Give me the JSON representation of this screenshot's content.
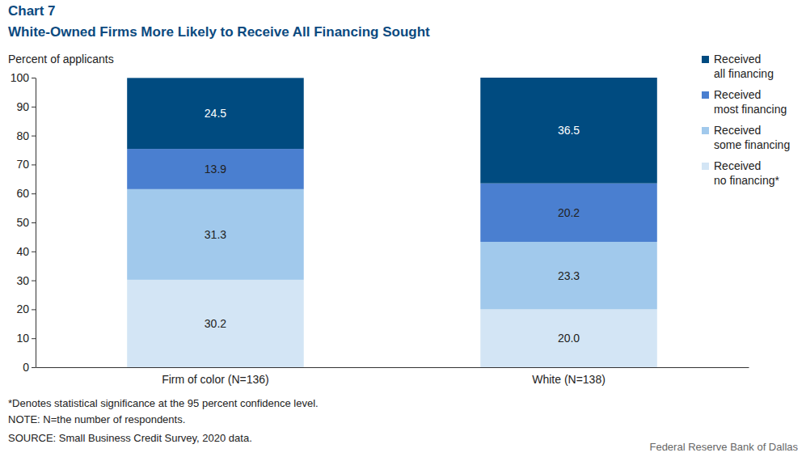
{
  "chart_data": {
    "type": "bar",
    "stacked": true,
    "data_labels": true,
    "grid": false,
    "legend": "right",
    "chart_number": "Chart 7",
    "title": "White-Owned Firms More Likely to Receive All Financing Sought",
    "y_label": "Percent of applicants",
    "categories": [
      "Firm of color (N=136)",
      "White (N=138)"
    ],
    "series": [
      {
        "name": "Received no financing*",
        "color": "#d3e5f5",
        "values": [
          30.2,
          20.0
        ],
        "value_labels": [
          "30.2",
          "20.0"
        ]
      },
      {
        "name": "Received some financing",
        "color": "#a1c9ec",
        "values": [
          31.3,
          23.3
        ],
        "value_labels": [
          "31.3",
          "23.3"
        ]
      },
      {
        "name": "Received most financing",
        "color": "#4a7fd0",
        "values": [
          13.9,
          20.2
        ],
        "value_labels": [
          "13.9",
          "20.2"
        ]
      },
      {
        "name": "Received all financing",
        "color": "#004b80",
        "values": [
          24.5,
          36.5
        ],
        "value_labels": [
          "24.5",
          "36.5"
        ]
      }
    ],
    "ylim": [
      0,
      100
    ],
    "yticks": [
      0,
      10,
      20,
      30,
      40,
      50,
      60,
      70,
      80,
      90,
      100
    ],
    "notes": [
      "*Denotes statistical significance at the 95 percent confidence level.",
      "NOTE: N=the number of respondents.",
      "SOURCE: Small Business Credit Survey, 2020 data."
    ],
    "credit": "Federal Reserve Bank of Dallas"
  }
}
